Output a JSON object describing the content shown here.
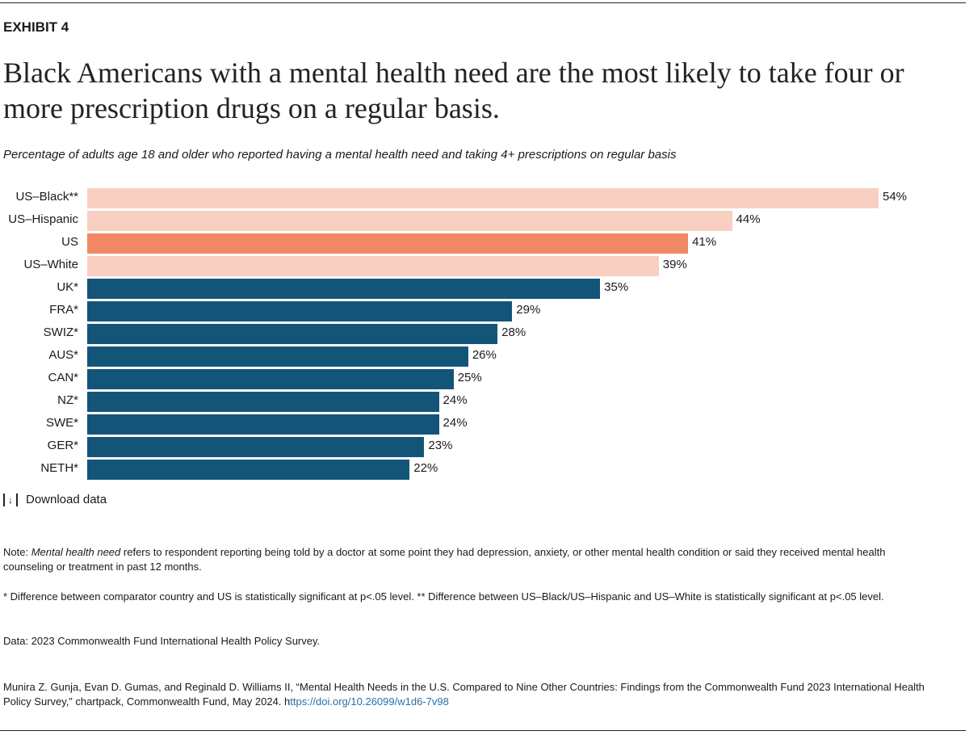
{
  "exhibit": "EXHIBIT 4",
  "title": "Black Americans with a mental health need are the most likely to take four or more prescription drugs on a regular basis.",
  "subtitle": "Percentage of adults age 18 and older who reported having a mental health need and taking 4+ prescriptions on regular basis",
  "colors": {
    "us_subgroup": "#f8cfc0",
    "us": "#f08864",
    "comparator": "#135579"
  },
  "chart_data": {
    "type": "bar",
    "orientation": "horizontal",
    "xlim": [
      0,
      54
    ],
    "grid": false,
    "categories": [
      "US–Black**",
      "US–Hispanic",
      "US",
      "US–White",
      "UK*",
      "FRA*",
      "SWIZ*",
      "AUS*",
      "CAN*",
      "NZ*",
      "SWE*",
      "GER*",
      "NETH*"
    ],
    "values": [
      54,
      44,
      41,
      39,
      35,
      29,
      28,
      26,
      25,
      24,
      24,
      23,
      22
    ],
    "value_labels": [
      "54%",
      "44%",
      "41%",
      "39%",
      "35%",
      "29%",
      "28%",
      "26%",
      "25%",
      "24%",
      "24%",
      "23%",
      "22%"
    ],
    "groups": [
      "us_subgroup",
      "us_subgroup",
      "us",
      "us_subgroup",
      "comparator",
      "comparator",
      "comparator",
      "comparator",
      "comparator",
      "comparator",
      "comparator",
      "comparator",
      "comparator"
    ]
  },
  "download": {
    "label": "Download data",
    "icon": "download-icon"
  },
  "notes": {
    "note_prefix": "Note: ",
    "note_term": "Mental health need",
    "note_rest": " refers to respondent reporting being told by a doctor at some point they had depression, anxiety, or other mental health condition or said they received mental health counseling or treatment in past 12 months.",
    "significance": "* Difference between comparator country and US is statistically significant at p<.05 level. ** Difference between US–Black/US–Hispanic and US–White is statistically significant at p<.05 level.",
    "data": "Data: 2023 Commonwealth Fund International Health Policy Survey.",
    "citation": "Munira Z. Gunja, Evan D. Gumas, and Reginald D. Williams II, “Mental Health Needs in the U.S. Compared to Nine Other Countries: Findings from the Commonwealth Fund 2023 International Health Policy Survey,” chartpack, Commonwealth Fund, May 2024. h",
    "link": "ttps://doi.org/10.26099/w1d6-7v98"
  }
}
